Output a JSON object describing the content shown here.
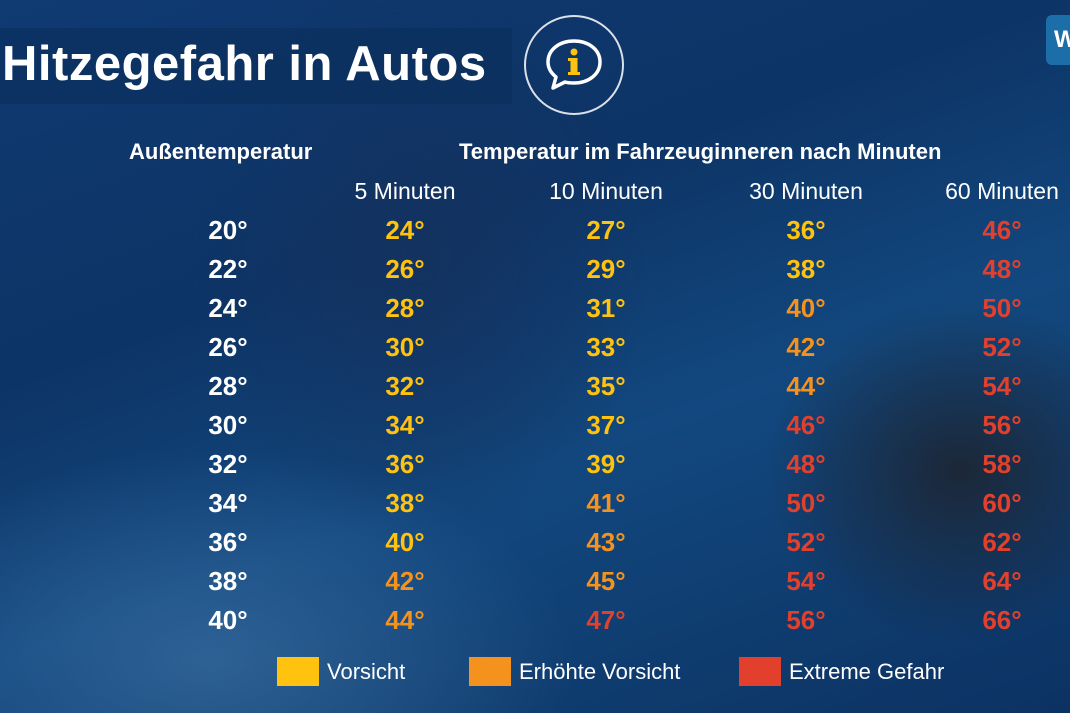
{
  "title": "Hitzegefahr in Autos",
  "info_icon": "speech-bubble-info-icon",
  "logo_text": "W",
  "headers": {
    "outside": "Außentemperatur",
    "inside": "Temperatur im Fahrzeuginneren nach Minuten"
  },
  "columns": [
    "5 Minuten",
    "10 Minuten",
    "30 Minuten",
    "60 Minuten"
  ],
  "colors": {
    "yellow": "#ffc20e",
    "orange": "#f5921e",
    "red": "#e2402c",
    "white": "#ffffff"
  },
  "rows": [
    {
      "outside": "20°",
      "values": [
        {
          "t": "24°",
          "c": "yellow"
        },
        {
          "t": "27°",
          "c": "yellow"
        },
        {
          "t": "36°",
          "c": "yellow"
        },
        {
          "t": "46°",
          "c": "red"
        }
      ]
    },
    {
      "outside": "22°",
      "values": [
        {
          "t": "26°",
          "c": "yellow"
        },
        {
          "t": "29°",
          "c": "yellow"
        },
        {
          "t": "38°",
          "c": "yellow"
        },
        {
          "t": "48°",
          "c": "red"
        }
      ]
    },
    {
      "outside": "24°",
      "values": [
        {
          "t": "28°",
          "c": "yellow"
        },
        {
          "t": "31°",
          "c": "yellow"
        },
        {
          "t": "40°",
          "c": "orange"
        },
        {
          "t": "50°",
          "c": "red"
        }
      ]
    },
    {
      "outside": "26°",
      "values": [
        {
          "t": "30°",
          "c": "yellow"
        },
        {
          "t": "33°",
          "c": "yellow"
        },
        {
          "t": "42°",
          "c": "orange"
        },
        {
          "t": "52°",
          "c": "red"
        }
      ]
    },
    {
      "outside": "28°",
      "values": [
        {
          "t": "32°",
          "c": "yellow"
        },
        {
          "t": "35°",
          "c": "yellow"
        },
        {
          "t": "44°",
          "c": "orange"
        },
        {
          "t": "54°",
          "c": "red"
        }
      ]
    },
    {
      "outside": "30°",
      "values": [
        {
          "t": "34°",
          "c": "yellow"
        },
        {
          "t": "37°",
          "c": "yellow"
        },
        {
          "t": "46°",
          "c": "red"
        },
        {
          "t": "56°",
          "c": "red"
        }
      ]
    },
    {
      "outside": "32°",
      "values": [
        {
          "t": "36°",
          "c": "yellow"
        },
        {
          "t": "39°",
          "c": "yellow"
        },
        {
          "t": "48°",
          "c": "red"
        },
        {
          "t": "58°",
          "c": "red"
        }
      ]
    },
    {
      "outside": "34°",
      "values": [
        {
          "t": "38°",
          "c": "yellow"
        },
        {
          "t": "41°",
          "c": "orange"
        },
        {
          "t": "50°",
          "c": "red"
        },
        {
          "t": "60°",
          "c": "red"
        }
      ]
    },
    {
      "outside": "36°",
      "values": [
        {
          "t": "40°",
          "c": "yellow"
        },
        {
          "t": "43°",
          "c": "orange"
        },
        {
          "t": "52°",
          "c": "red"
        },
        {
          "t": "62°",
          "c": "red"
        }
      ]
    },
    {
      "outside": "38°",
      "values": [
        {
          "t": "42°",
          "c": "orange"
        },
        {
          "t": "45°",
          "c": "orange"
        },
        {
          "t": "54°",
          "c": "red"
        },
        {
          "t": "64°",
          "c": "red"
        }
      ]
    },
    {
      "outside": "40°",
      "values": [
        {
          "t": "44°",
          "c": "orange"
        },
        {
          "t": "47°",
          "c": "red"
        },
        {
          "t": "56°",
          "c": "red"
        },
        {
          "t": "66°",
          "c": "red"
        }
      ]
    }
  ],
  "legend": [
    {
      "label": "Vorsicht",
      "color": "yellow"
    },
    {
      "label": "Erhöhte Vorsicht",
      "color": "orange"
    },
    {
      "label": "Extreme Gefahr",
      "color": "red"
    }
  ]
}
